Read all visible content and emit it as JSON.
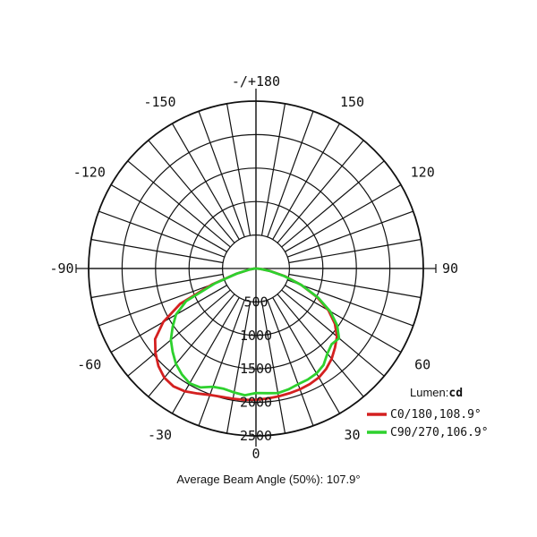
{
  "chart_data": {
    "type": "polar",
    "angle_labels": [
      {
        "angle": 180,
        "text": "-/+180"
      },
      {
        "angle": 150,
        "text": "150"
      },
      {
        "angle": -150,
        "text": "-150"
      },
      {
        "angle": 120,
        "text": "120"
      },
      {
        "angle": -120,
        "text": "-120"
      },
      {
        "angle": 90,
        "text": "90"
      },
      {
        "angle": -90,
        "text": "-90"
      },
      {
        "angle": 60,
        "text": "60"
      },
      {
        "angle": -60,
        "text": "-60"
      },
      {
        "angle": 30,
        "text": "30"
      },
      {
        "angle": -30,
        "text": "-30"
      },
      {
        "angle": 0,
        "text": "0"
      }
    ],
    "radial_ticks": [
      500,
      1000,
      1500,
      2000,
      2500
    ],
    "r_max": 2500,
    "angular_step_deg": 10,
    "inner_circle_value": 500,
    "unit_label": "Lumen:",
    "unit_value": "cd",
    "series": [
      {
        "name": "C0/180,108.9°",
        "color": "#d42020",
        "points": [
          [
            -90,
            0
          ],
          [
            -85,
            35
          ],
          [
            -80,
            110
          ],
          [
            -75,
            300
          ],
          [
            -70,
            700
          ],
          [
            -65,
            1250
          ],
          [
            -60,
            1600
          ],
          [
            -55,
            1840
          ],
          [
            -50,
            1960
          ],
          [
            -45,
            2060
          ],
          [
            -40,
            2130
          ],
          [
            -35,
            2150
          ],
          [
            -30,
            2120
          ],
          [
            -25,
            2060
          ],
          [
            -20,
            2010
          ],
          [
            -15,
            1985
          ],
          [
            -10,
            1975
          ],
          [
            -5,
            1970
          ],
          [
            0,
            1960
          ],
          [
            5,
            1950
          ],
          [
            10,
            1940
          ],
          [
            15,
            1930
          ],
          [
            20,
            1920
          ],
          [
            25,
            1905
          ],
          [
            30,
            1880
          ],
          [
            35,
            1830
          ],
          [
            40,
            1760
          ],
          [
            45,
            1670
          ],
          [
            50,
            1580
          ],
          [
            55,
            1440
          ],
          [
            60,
            1250
          ],
          [
            65,
            1000
          ],
          [
            70,
            720
          ],
          [
            75,
            450
          ],
          [
            80,
            220
          ],
          [
            85,
            70
          ],
          [
            90,
            0
          ]
        ]
      },
      {
        "name": "C90/270,106.9°",
        "color": "#2ed12e",
        "points": [
          [
            -90,
            0
          ],
          [
            -85,
            35
          ],
          [
            -80,
            110
          ],
          [
            -75,
            300
          ],
          [
            -70,
            650
          ],
          [
            -65,
            1150
          ],
          [
            -60,
            1380
          ],
          [
            -55,
            1520
          ],
          [
            -50,
            1660
          ],
          [
            -45,
            1760
          ],
          [
            -40,
            1860
          ],
          [
            -35,
            1930
          ],
          [
            -30,
            1980
          ],
          [
            -25,
            1960
          ],
          [
            -20,
            1880
          ],
          [
            -15,
            1860
          ],
          [
            -10,
            1880
          ],
          [
            -5,
            1900
          ],
          [
            0,
            1860
          ],
          [
            5,
            1870
          ],
          [
            10,
            1890
          ],
          [
            15,
            1870
          ],
          [
            20,
            1840
          ],
          [
            25,
            1830
          ],
          [
            30,
            1810
          ],
          [
            35,
            1760
          ],
          [
            40,
            1660
          ],
          [
            45,
            1600
          ],
          [
            50,
            1620
          ],
          [
            55,
            1480
          ],
          [
            60,
            1280
          ],
          [
            65,
            1020
          ],
          [
            70,
            720
          ],
          [
            75,
            430
          ],
          [
            80,
            200
          ],
          [
            85,
            60
          ],
          [
            90,
            0
          ]
        ]
      }
    ]
  },
  "footer": {
    "beam_angle": "Average Beam Angle (50%): 107.9°"
  }
}
